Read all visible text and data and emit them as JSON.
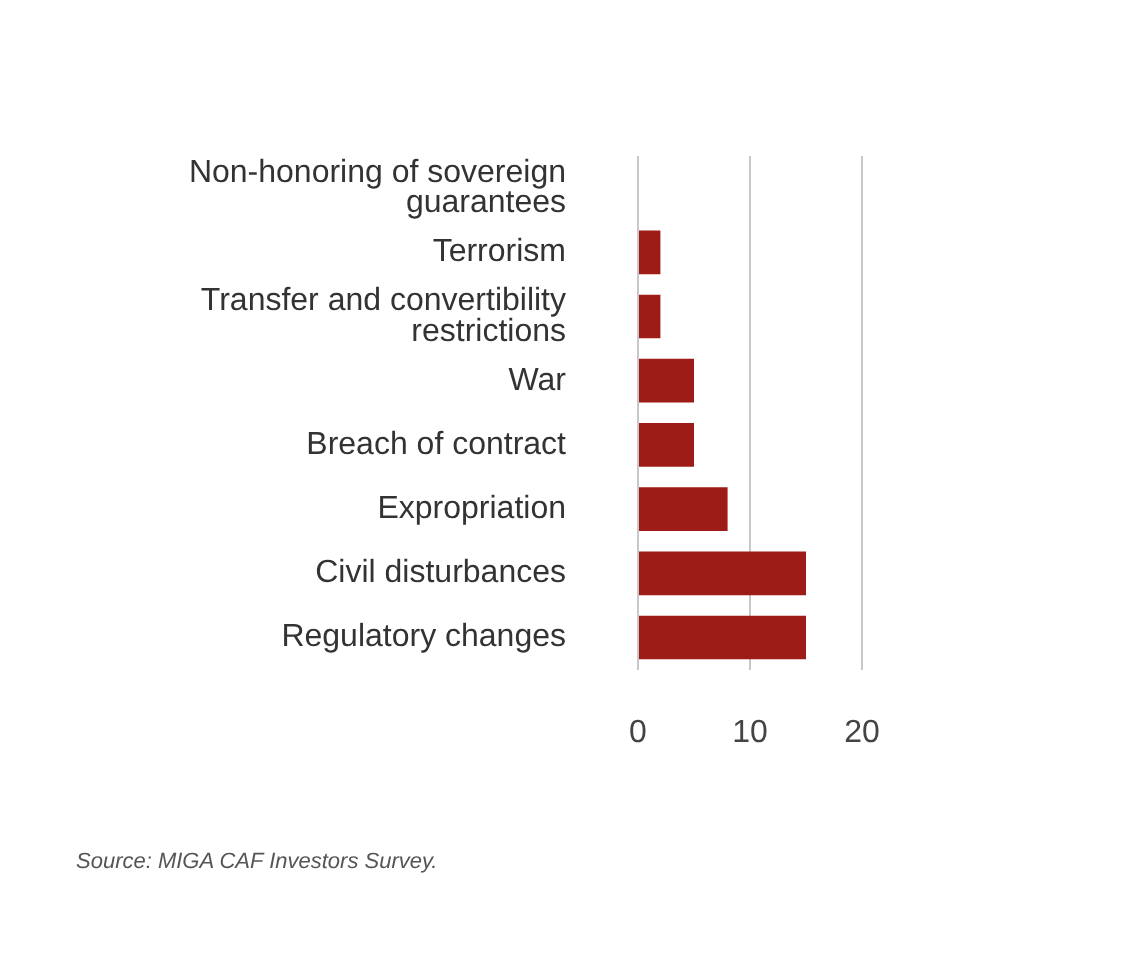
{
  "chart_data": {
    "type": "bar",
    "orientation": "horizontal",
    "categories": [
      "Non-honoring of sovereign guarantees",
      "Terrorism",
      "Transfer and convertibility restrictions",
      "War",
      "Breach of contract",
      "Expropriation",
      "Civil disturbances",
      "Regulatory changes"
    ],
    "values": [
      0,
      2,
      2,
      5,
      5,
      8,
      15,
      15
    ],
    "color": "#9e1c17",
    "xlim": [
      0,
      20
    ],
    "xticks": [
      0,
      10,
      20
    ],
    "grid": "x",
    "annotations": [
      "Source: MIGA CAF Investors Survey."
    ]
  }
}
